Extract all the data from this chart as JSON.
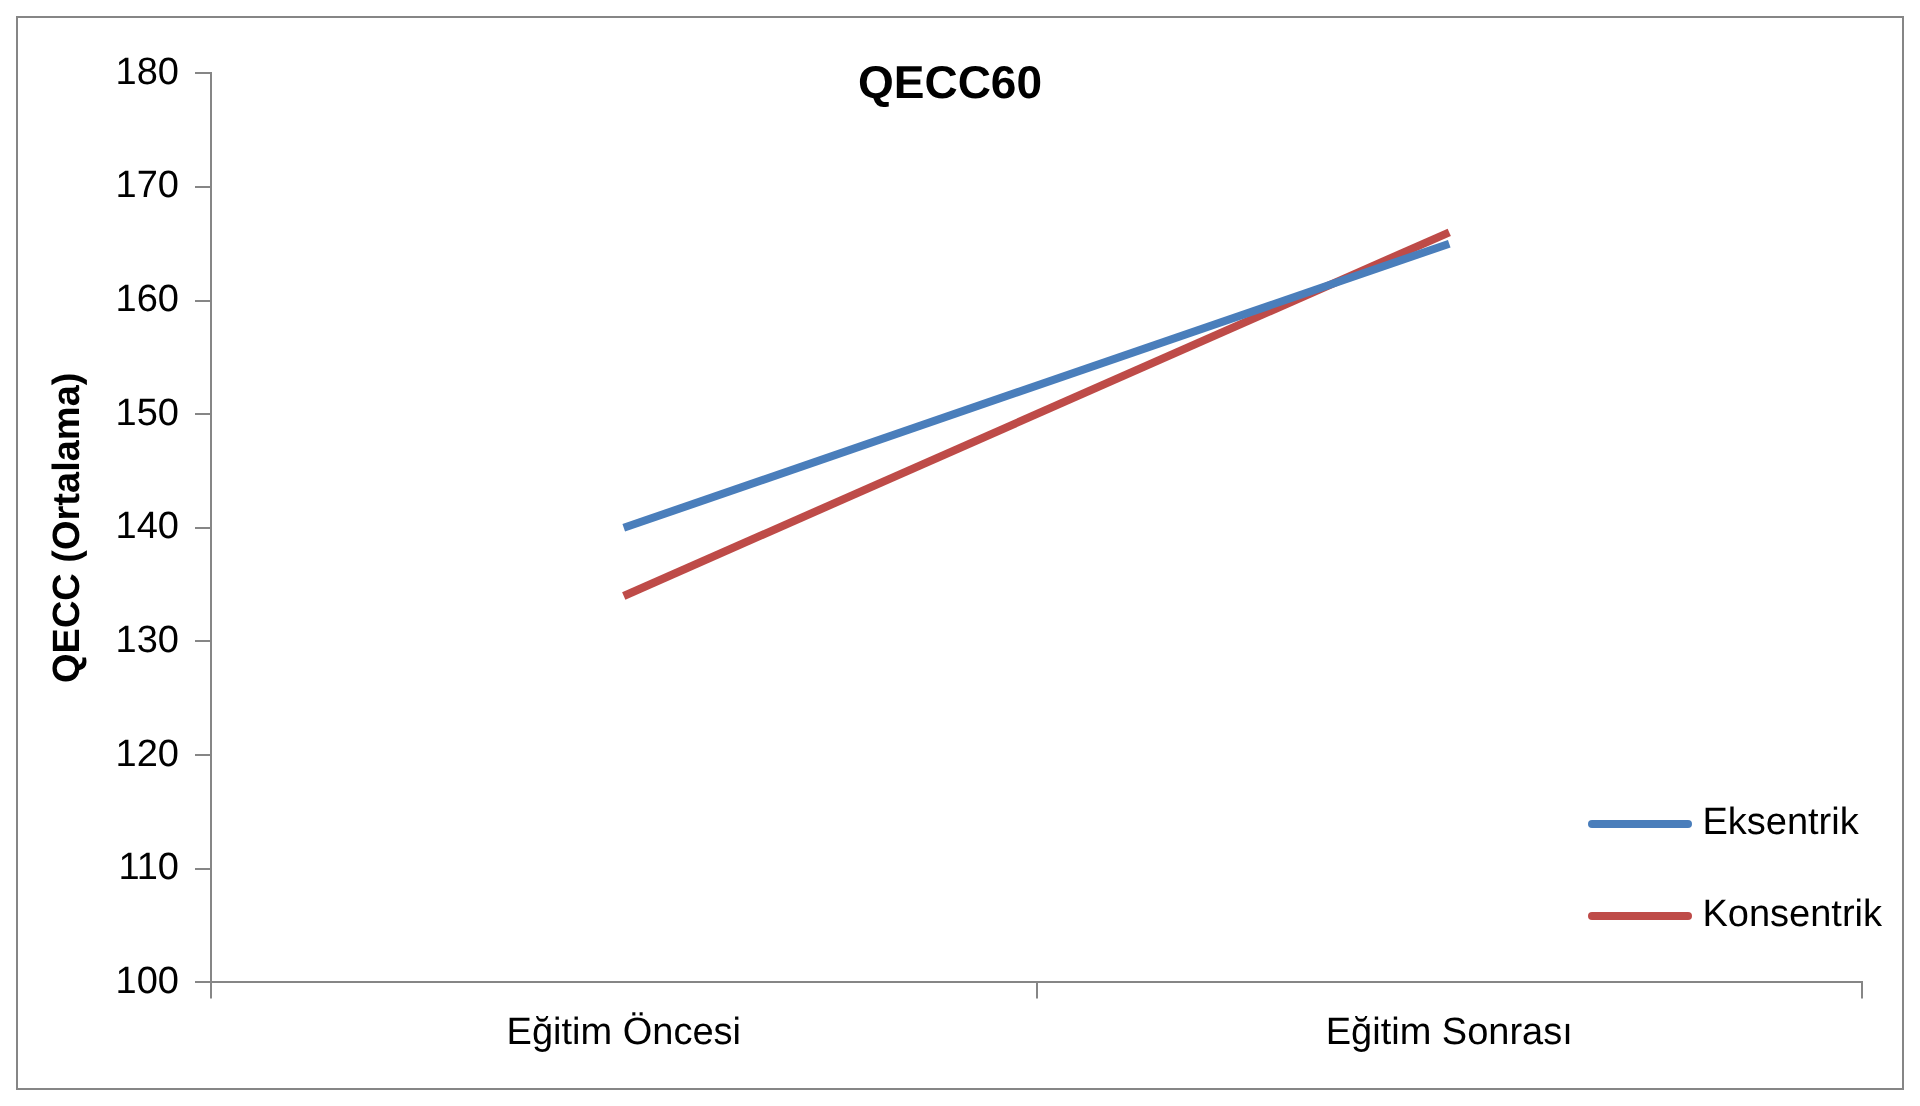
{
  "chart_data": {
    "type": "line",
    "title": "QECC60",
    "ylabel": "QECC (Ortalama)",
    "categories": [
      "Eğitim Öncesi",
      "Eğitim Sonrası"
    ],
    "series": [
      {
        "name": "Eksentrik",
        "color": "#4a7ebb",
        "values": [
          140,
          165
        ]
      },
      {
        "name": "Konsentrik",
        "color": "#be4b48",
        "values": [
          134,
          166
        ]
      }
    ],
    "ylim": [
      100,
      180
    ],
    "yticks": [
      100,
      110,
      120,
      130,
      140,
      150,
      160,
      170,
      180
    ],
    "grid": false,
    "legend": "bottom right",
    "marker": "none"
  }
}
